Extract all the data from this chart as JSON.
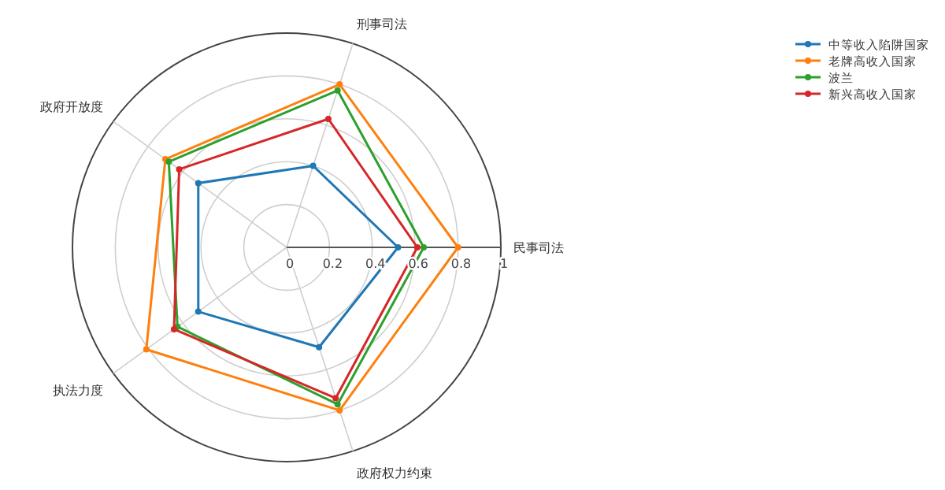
{
  "chart_data": {
    "type": "radar",
    "categories": [
      "刑事司法",
      "民事司法",
      "政府权力约束",
      "执法力度",
      "政府开放度"
    ],
    "series": [
      {
        "name": "中等收入陷阱国家",
        "color": "#1f77b4",
        "values": [
          0.4,
          0.52,
          0.49,
          0.51,
          0.51
        ]
      },
      {
        "name": "老牌高收入国家",
        "color": "#ff7f0e",
        "values": [
          0.8,
          0.8,
          0.8,
          0.81,
          0.7
        ]
      },
      {
        "name": "波兰",
        "color": "#2ca02c",
        "values": [
          0.77,
          0.64,
          0.77,
          0.63,
          0.68
        ]
      },
      {
        "name": "新兴高收入国家",
        "color": "#d62728",
        "values": [
          0.63,
          0.61,
          0.74,
          0.65,
          0.62
        ]
      }
    ],
    "ylim": [
      0,
      1
    ],
    "yticks": [
      0,
      0.2,
      0.4,
      0.6,
      0.8,
      1
    ],
    "grid": true,
    "legend": "top right",
    "marker": "circle"
  }
}
